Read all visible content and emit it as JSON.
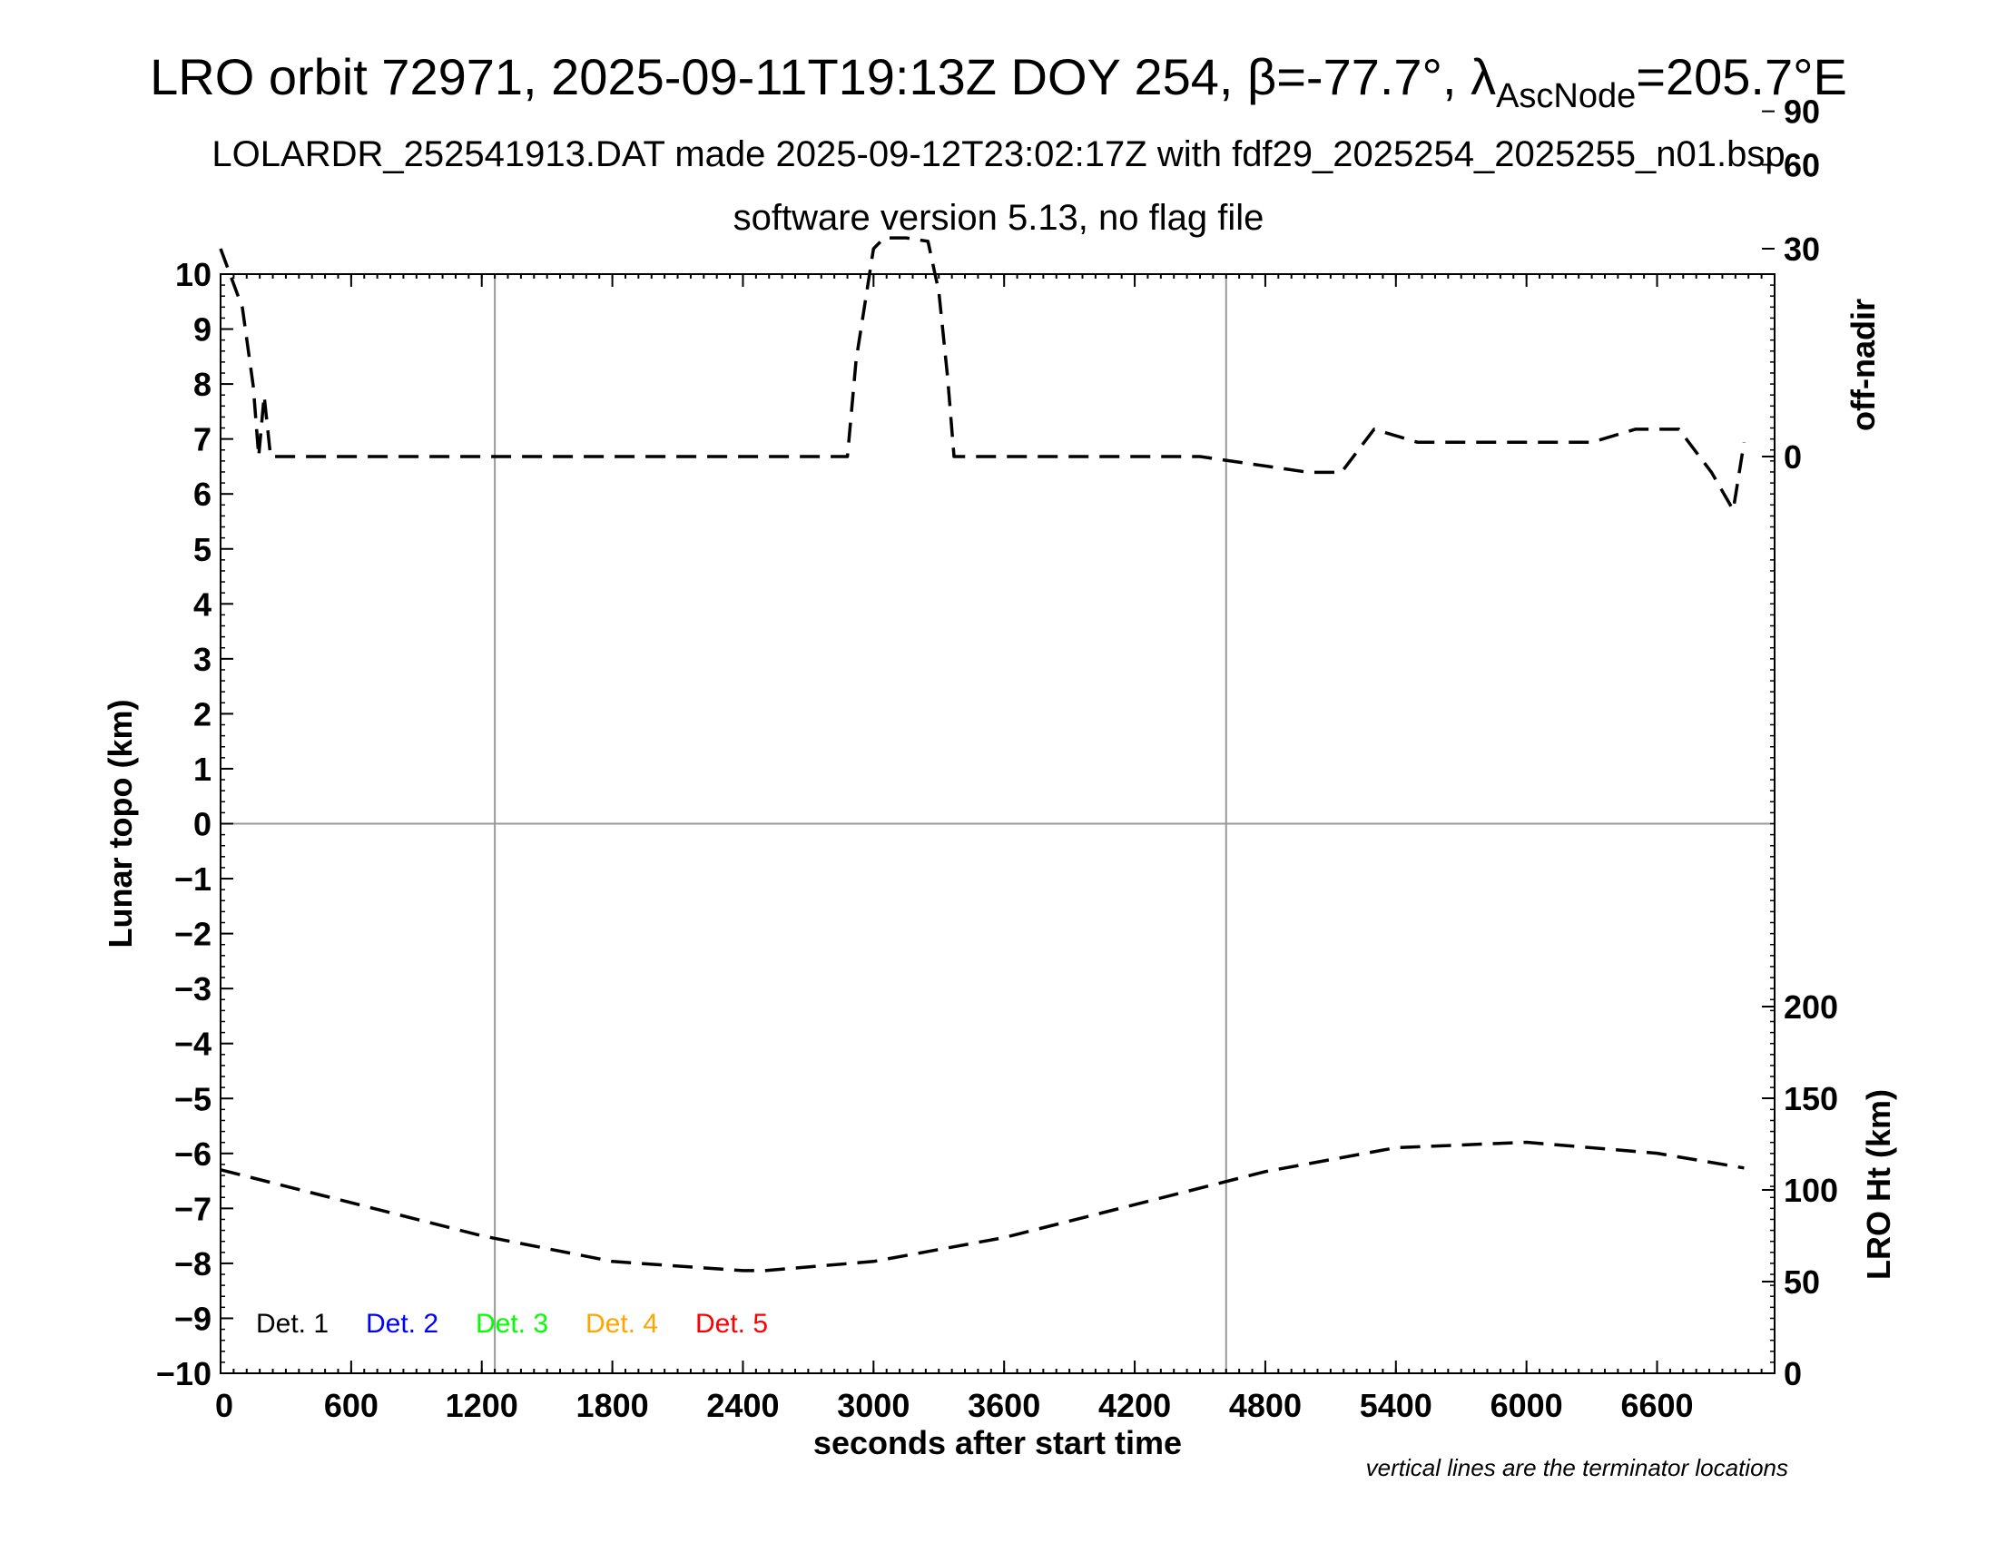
{
  "title_parts": {
    "main": "LRO orbit 72971, 2025-09-11T19:13Z DOY 254, β=-77.7°, λ",
    "sub": "AscNode",
    "tail": "=205.7°E"
  },
  "subtitle1": "LOLARDR_252541913.DAT made 2025-09-12T23:02:17Z with fdf29_2025254_2025255_n01.bsp",
  "subtitle2": "software version 5.13, no flag file",
  "note": "vertical lines are the terminator locations",
  "chart_data": {
    "type": "line",
    "xlabel": "seconds after start time",
    "ylabel_left": "Lunar topo (km)",
    "ylabel_right_top": "off-nadir",
    "ylabel_right_bottom": "LRO Ht (km)",
    "xlim": [
      0,
      7140
    ],
    "ylim_left": [
      -10,
      10
    ],
    "x_ticks": [
      0,
      600,
      1200,
      1800,
      2400,
      3000,
      3600,
      4200,
      4800,
      5400,
      6000,
      6600
    ],
    "y_ticks_left": [
      10,
      9,
      8,
      7,
      6,
      5,
      4,
      3,
      2,
      1,
      0,
      "−1",
      "−2",
      "−3",
      "−4",
      "−5",
      "−6",
      "−7",
      "−8",
      "−9",
      "−10"
    ],
    "y_ticks_right_top": [
      90,
      60,
      30,
      0
    ],
    "y_ticks_right_bottom": [
      200,
      150,
      100,
      50,
      0
    ],
    "terminator_x": [
      1260,
      4620
    ],
    "grid": "terminator lines and zero line",
    "legend": [
      {
        "label": "Det. 1",
        "color": "#000000"
      },
      {
        "label": "Det. 2",
        "color": "#0000ff"
      },
      {
        "label": "Det. 3",
        "color": "#00ff00"
      },
      {
        "label": "Det. 4",
        "color": "#ffa500"
      },
      {
        "label": "Det. 5",
        "color": "#ff0000"
      }
    ],
    "series": [
      {
        "axis": "off-nadir",
        "style": "dashed",
        "x": [
          0,
          100,
          150,
          175,
          200,
          230,
          500,
          1000,
          1500,
          2000,
          2500,
          2880,
          2920,
          3000,
          3050,
          3150,
          3250,
          3300,
          3340,
          3370,
          3500,
          4000,
          4500,
          5000,
          5150,
          5300,
          5500,
          6000,
          6300,
          6500,
          6700,
          6850,
          6950,
          7000
        ],
        "y": [
          30,
          17,
          6,
          0,
          5,
          0,
          0,
          0,
          0,
          0,
          0,
          0,
          9,
          30,
          33,
          33,
          32,
          20,
          7,
          0,
          0,
          0,
          0,
          -1,
          -1,
          2,
          1,
          1,
          1,
          2,
          2,
          -1,
          -3,
          1
        ]
      },
      {
        "axis": "LRO Ht (km)",
        "style": "dashed",
        "x": [
          0,
          600,
          1200,
          1800,
          2400,
          2500,
          3000,
          3600,
          4200,
          4800,
          5400,
          6000,
          6600,
          7000
        ],
        "y": [
          111,
          93,
          75,
          61,
          56,
          56,
          61,
          74,
          92,
          110,
          123,
          126,
          120,
          112
        ]
      }
    ]
  }
}
